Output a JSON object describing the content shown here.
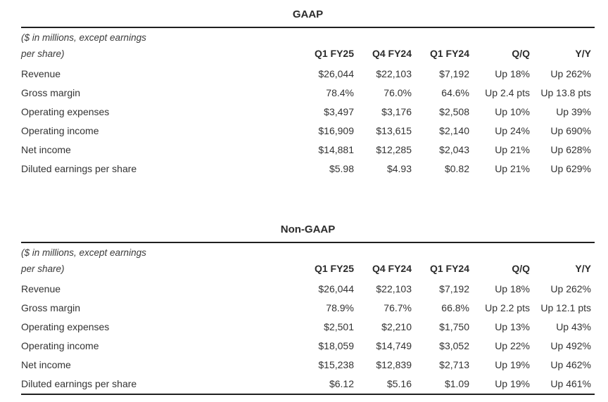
{
  "page": {
    "background": "#ffffff",
    "text_color": "#333333",
    "rule_color": "#1f1f1f"
  },
  "unit_note": {
    "line1": "($ in millions, except earnings",
    "line2": "per share)"
  },
  "column_headers": [
    "Q1 FY25",
    "Q4 FY24",
    "Q1 FY24",
    "Q/Q",
    "Y/Y"
  ],
  "tables": [
    {
      "title": "GAAP",
      "rows": [
        {
          "label": "Revenue",
          "values": [
            "$26,044",
            "$22,103",
            "$7,192",
            "Up 18%",
            "Up 262%"
          ]
        },
        {
          "label": "Gross margin",
          "values": [
            "78.4%",
            "76.0%",
            "64.6%",
            "Up 2.4 pts",
            "Up 13.8 pts"
          ]
        },
        {
          "label": "Operating expenses",
          "values": [
            "$3,497",
            "$3,176",
            "$2,508",
            "Up 10%",
            "Up 39%"
          ]
        },
        {
          "label": "Operating income",
          "values": [
            "$16,909",
            "$13,615",
            "$2,140",
            "Up 24%",
            "Up 690%"
          ]
        },
        {
          "label": "Net income",
          "values": [
            "$14,881",
            "$12,285",
            "$2,043",
            "Up 21%",
            "Up 628%"
          ]
        },
        {
          "label": "Diluted earnings per share",
          "values": [
            "$5.98",
            "$4.93",
            "$0.82",
            "Up 21%",
            "Up 629%"
          ]
        }
      ]
    },
    {
      "title": "Non-GAAP",
      "rows": [
        {
          "label": "Revenue",
          "values": [
            "$26,044",
            "$22,103",
            "$7,192",
            "Up 18%",
            "Up 262%"
          ]
        },
        {
          "label": "Gross margin",
          "values": [
            "78.9%",
            "76.7%",
            "66.8%",
            "Up 2.2 pts",
            "Up 12.1 pts"
          ]
        },
        {
          "label": "Operating expenses",
          "values": [
            "$2,501",
            "$2,210",
            "$1,750",
            "Up 13%",
            "Up 43%"
          ]
        },
        {
          "label": "Operating income",
          "values": [
            "$18,059",
            "$14,749",
            "$3,052",
            "Up 22%",
            "Up 492%"
          ]
        },
        {
          "label": "Net income",
          "values": [
            "$15,238",
            "$12,839",
            "$2,713",
            "Up 19%",
            "Up 462%"
          ]
        },
        {
          "label": "Diluted earnings per share",
          "values": [
            "$6.12",
            "$5.16",
            "$1.09",
            "Up 19%",
            "Up 461%"
          ]
        }
      ]
    }
  ]
}
